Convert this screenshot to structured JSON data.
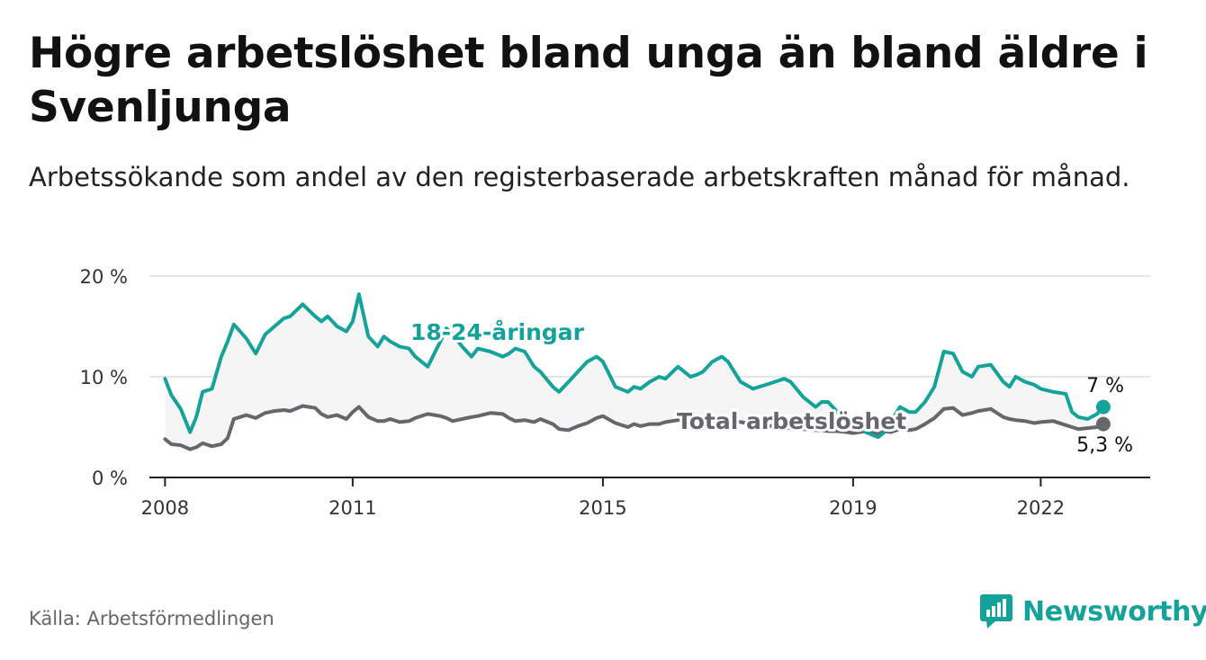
{
  "title": "Högre arbetslöshet bland unga än bland äldre i Svenljunga",
  "subtitle": "Arbetssökande som andel av den registerbaserade arbetskraften månad för månad.",
  "source": "Källa: Arbetsförmedlingen",
  "brand": "Newsworthy",
  "colors": {
    "young": "#14a39a",
    "total": "#66666c",
    "band": "#f5f5f5",
    "grid": "#dddddd",
    "brand": "#14a39a"
  },
  "chart_data": {
    "type": "line",
    "title": "Högre arbetslöshet bland unga än bland äldre i Svenljunga",
    "xlabel": "",
    "ylabel": "",
    "ylim": [
      0,
      20
    ],
    "xlim": [
      2007.75,
      2023.75
    ],
    "yticks": [
      0,
      10,
      20
    ],
    "ytick_labels": [
      "0 %",
      "10 %",
      "20 %"
    ],
    "xticks": [
      2008,
      2011,
      2015,
      2019,
      2022
    ],
    "xtick_labels": [
      "2008",
      "2011",
      "2015",
      "2019",
      "2022"
    ],
    "grid": true,
    "series": [
      {
        "name": "18-24-åringar",
        "label": "18-24-åringar",
        "end_label": "7 %",
        "x": [
          2008.0,
          2008.1,
          2008.25,
          2008.4,
          2008.5,
          2008.6,
          2008.75,
          2008.9,
          2009.0,
          2009.1,
          2009.2,
          2009.3,
          2009.45,
          2009.6,
          2009.75,
          2009.9,
          2010.0,
          2010.2,
          2010.4,
          2010.5,
          2010.6,
          2010.75,
          2010.9,
          2011.0,
          2011.1,
          2011.25,
          2011.4,
          2011.5,
          2011.6,
          2011.75,
          2011.9,
          2012.0,
          2012.2,
          2012.4,
          2012.5,
          2012.6,
          2012.75,
          2012.9,
          2013.0,
          2013.2,
          2013.4,
          2013.5,
          2013.6,
          2013.75,
          2013.9,
          2014.0,
          2014.2,
          2014.3,
          2014.45,
          2014.6,
          2014.75,
          2014.9,
          2015.0,
          2015.2,
          2015.4,
          2015.5,
          2015.6,
          2015.75,
          2015.9,
          2016.0,
          2016.2,
          2016.4,
          2016.5,
          2016.6,
          2016.75,
          2016.9,
          2017.0,
          2017.2,
          2017.4,
          2017.5,
          2017.6,
          2017.75,
          2017.9,
          2018.0,
          2018.2,
          2018.4,
          2018.5,
          2018.6,
          2018.75,
          2018.9,
          2019.0,
          2019.2,
          2019.4,
          2019.5,
          2019.6,
          2019.75,
          2019.9,
          2020.0,
          2020.15,
          2020.3,
          2020.45,
          2020.6,
          2020.75,
          2020.9,
          2021.0,
          2021.2,
          2021.4,
          2021.5,
          2021.6,
          2021.75,
          2021.9,
          2022.0,
          2022.2,
          2022.4,
          2022.5,
          2022.6,
          2022.75,
          2022.9,
          2023.0
        ],
        "values": [
          9.8,
          8.2,
          6.8,
          4.5,
          6.0,
          8.5,
          8.8,
          12.0,
          13.5,
          15.2,
          14.5,
          13.8,
          12.3,
          14.2,
          15.0,
          15.8,
          16.0,
          17.2,
          16.0,
          15.5,
          16.0,
          15.0,
          14.5,
          15.5,
          18.2,
          14.0,
          13.0,
          14.0,
          13.5,
          13.0,
          12.8,
          12.0,
          11.0,
          13.5,
          14.8,
          14.2,
          13.0,
          12.0,
          12.8,
          12.5,
          12.0,
          12.3,
          12.8,
          12.5,
          11.0,
          10.5,
          9.0,
          8.5,
          9.5,
          10.5,
          11.5,
          12.0,
          11.5,
          9.0,
          8.5,
          9.0,
          8.8,
          9.5,
          10.0,
          9.8,
          11.0,
          10.0,
          10.2,
          10.5,
          11.5,
          12.0,
          11.5,
          9.5,
          8.8,
          9.0,
          9.2,
          9.5,
          9.8,
          9.5,
          8.0,
          7.0,
          7.5,
          7.5,
          6.5,
          5.5,
          5.5,
          4.5,
          4.0,
          4.5,
          5.5,
          7.0,
          6.5,
          6.5,
          7.5,
          9.0,
          12.5,
          12.3,
          10.5,
          10.0,
          11.0,
          11.2,
          9.5,
          9.0,
          10.0,
          9.5,
          9.2,
          8.8,
          8.5,
          8.3,
          6.5,
          6.0,
          5.8,
          6.3,
          7.0
        ]
      },
      {
        "name": "Total arbetslöshet",
        "label": "Total arbetslöshet",
        "end_label": "5,3 %",
        "x": [
          2008.0,
          2008.1,
          2008.25,
          2008.4,
          2008.5,
          2008.6,
          2008.75,
          2008.9,
          2009.0,
          2009.1,
          2009.2,
          2009.3,
          2009.45,
          2009.6,
          2009.75,
          2009.9,
          2010.0,
          2010.2,
          2010.4,
          2010.5,
          2010.6,
          2010.75,
          2010.9,
          2011.0,
          2011.1,
          2011.25,
          2011.4,
          2011.5,
          2011.6,
          2011.75,
          2011.9,
          2012.0,
          2012.2,
          2012.4,
          2012.5,
          2012.6,
          2012.75,
          2012.9,
          2013.0,
          2013.2,
          2013.4,
          2013.5,
          2013.6,
          2013.75,
          2013.9,
          2014.0,
          2014.2,
          2014.3,
          2014.45,
          2014.6,
          2014.75,
          2014.9,
          2015.0,
          2015.2,
          2015.4,
          2015.5,
          2015.6,
          2015.75,
          2015.9,
          2016.0,
          2016.2,
          2016.4,
          2016.5,
          2016.6,
          2016.75,
          2016.9,
          2017.0,
          2017.2,
          2017.4,
          2017.5,
          2017.6,
          2017.75,
          2017.9,
          2018.0,
          2018.2,
          2018.4,
          2018.5,
          2018.6,
          2018.75,
          2018.9,
          2019.0,
          2019.2,
          2019.4,
          2019.5,
          2019.6,
          2019.75,
          2019.9,
          2020.0,
          2020.15,
          2020.3,
          2020.45,
          2020.6,
          2020.75,
          2020.9,
          2021.0,
          2021.2,
          2021.4,
          2021.5,
          2021.6,
          2021.75,
          2021.9,
          2022.0,
          2022.2,
          2022.4,
          2022.5,
          2022.6,
          2022.75,
          2022.9,
          2023.0
        ],
        "values": [
          3.8,
          3.3,
          3.2,
          2.8,
          3.0,
          3.4,
          3.1,
          3.3,
          3.9,
          5.8,
          6.0,
          6.2,
          5.9,
          6.4,
          6.6,
          6.7,
          6.6,
          7.1,
          6.9,
          6.3,
          6.0,
          6.2,
          5.8,
          6.5,
          7.0,
          6.0,
          5.6,
          5.6,
          5.8,
          5.5,
          5.6,
          5.9,
          6.3,
          6.1,
          5.9,
          5.6,
          5.8,
          6.0,
          6.1,
          6.4,
          6.3,
          5.9,
          5.6,
          5.7,
          5.5,
          5.8,
          5.3,
          4.8,
          4.7,
          5.1,
          5.4,
          5.9,
          6.1,
          5.4,
          5.0,
          5.3,
          5.1,
          5.3,
          5.3,
          5.5,
          5.7,
          5.9,
          5.6,
          5.7,
          5.6,
          5.8,
          5.7,
          5.5,
          5.3,
          5.1,
          5.0,
          5.2,
          5.0,
          4.9,
          4.8,
          4.7,
          4.7,
          4.6,
          4.6,
          4.5,
          4.4,
          4.6,
          4.3,
          4.6,
          4.5,
          4.8,
          4.7,
          4.8,
          5.3,
          5.9,
          6.8,
          6.9,
          6.2,
          6.4,
          6.6,
          6.8,
          6.0,
          5.8,
          5.7,
          5.6,
          5.4,
          5.5,
          5.6,
          5.2,
          5.0,
          4.8,
          4.9,
          5.0,
          5.3
        ]
      }
    ]
  }
}
